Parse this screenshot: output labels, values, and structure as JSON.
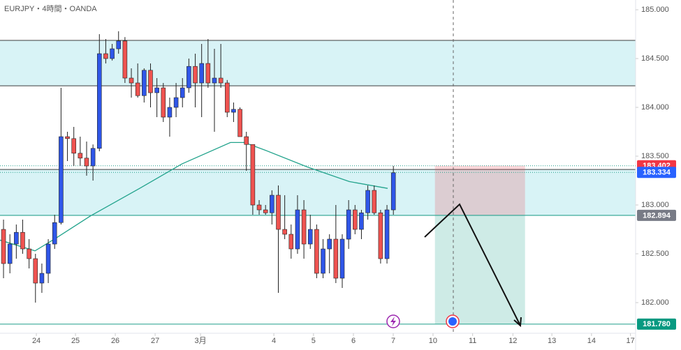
{
  "chart_data": {
    "type": "candlestick",
    "title": "EURJPY・4時間・OANDA",
    "up_color": "#2f56e8",
    "down_color": "#ef5350",
    "open": [
      182.75,
      182.4,
      182.6,
      182.72,
      182.55,
      182.45,
      182.2,
      182.3,
      182.6,
      182.82,
      183.7,
      183.68,
      183.53,
      183.48,
      183.4,
      183.58,
      184.55,
      184.5,
      184.6,
      184.68,
      184.3,
      184.25,
      184.12,
      184.38,
      184.15,
      184.2,
      183.9,
      184.0,
      184.1,
      184.2,
      184.42,
      184.25,
      184.45,
      184.25,
      184.3,
      184.25,
      183.95,
      183.98,
      183.7,
      183.62,
      183.0,
      182.95,
      182.92,
      183.1,
      182.75,
      182.7,
      182.55,
      182.95,
      182.6,
      182.75,
      182.3,
      182.55,
      182.65,
      182.25,
      182.65,
      182.95,
      182.75,
      182.92,
      183.15,
      182.92,
      182.45,
      182.95
    ],
    "high": [
      182.85,
      182.7,
      182.8,
      182.85,
      182.65,
      182.5,
      182.4,
      182.65,
      182.9,
      184.2,
      183.75,
      183.8,
      183.7,
      183.65,
      183.62,
      184.75,
      184.7,
      184.65,
      184.78,
      184.72,
      184.4,
      184.45,
      184.4,
      184.45,
      184.3,
      184.25,
      184.1,
      184.25,
      184.3,
      184.5,
      184.55,
      184.65,
      184.7,
      184.6,
      184.65,
      184.28,
      184.05,
      184.0,
      183.75,
      183.62,
      183.05,
      183.0,
      183.15,
      183.2,
      183.1,
      182.8,
      183.1,
      183.05,
      182.9,
      182.8,
      182.65,
      182.7,
      183.0,
      182.7,
      183.05,
      183.0,
      182.95,
      183.2,
      183.2,
      182.95,
      183.0,
      183.4
    ],
    "low": [
      182.25,
      182.3,
      182.45,
      182.5,
      182.35,
      182.0,
      182.1,
      182.2,
      182.55,
      182.8,
      183.45,
      183.4,
      183.4,
      183.3,
      183.25,
      183.55,
      184.45,
      184.48,
      184.55,
      184.25,
      184.1,
      184.1,
      184.05,
      184.0,
      183.9,
      183.85,
      183.7,
      183.9,
      184.0,
      184.15,
      184.0,
      183.9,
      184.2,
      183.75,
      184.2,
      183.9,
      183.85,
      183.7,
      183.35,
      182.9,
      182.9,
      182.9,
      182.8,
      182.1,
      182.65,
      182.45,
      182.5,
      182.45,
      182.55,
      182.25,
      182.25,
      182.3,
      182.2,
      182.15,
      182.55,
      182.7,
      182.65,
      182.85,
      182.9,
      182.4,
      182.4,
      182.9
    ],
    "close": [
      182.4,
      182.6,
      182.72,
      182.55,
      182.45,
      182.2,
      182.3,
      182.6,
      182.82,
      183.7,
      183.68,
      183.53,
      183.48,
      183.4,
      183.58,
      184.55,
      184.5,
      184.6,
      184.68,
      184.3,
      184.25,
      184.12,
      184.38,
      184.15,
      184.2,
      183.9,
      184.0,
      184.1,
      184.2,
      184.42,
      184.25,
      184.45,
      184.25,
      184.3,
      184.25,
      183.95,
      183.98,
      183.7,
      183.62,
      183.0,
      182.95,
      182.92,
      183.1,
      182.75,
      182.7,
      182.55,
      182.95,
      182.6,
      182.75,
      182.3,
      182.55,
      182.65,
      182.25,
      182.65,
      182.95,
      182.75,
      182.92,
      183.15,
      182.92,
      182.45,
      182.95,
      183.33
    ],
    "moving_average": {
      "color": "#22a38c",
      "x": [
        -0.55,
        4.92,
        8.2,
        13.66,
        21.3,
        27.9,
        35.5,
        37.7,
        41,
        47.5,
        54.1,
        60.1
      ],
      "values": [
        182.64,
        182.53,
        182.66,
        182.89,
        183.17,
        183.42,
        183.64,
        183.64,
        183.56,
        183.39,
        183.24,
        183.17
      ]
    },
    "zones": [
      {
        "from": 184.221,
        "to": 184.686
      },
      {
        "from": 182.894,
        "to": 183.364
      }
    ],
    "zone_color": "#d8f3f6",
    "position": {
      "x": [
        67.5,
        81.6
      ],
      "stop": 183.402,
      "entry": 182.894,
      "target": 181.78
    },
    "price_lines": [
      {
        "value": 183.402,
        "color": "#f23645"
      },
      {
        "value": 183.334,
        "color": "#2962ff"
      },
      {
        "value": 182.894,
        "color": "#787b86"
      },
      {
        "value": 181.78,
        "label": "181.780",
        "color": "#089981"
      }
    ],
    "xlim": [
      -0.55,
      98.9
    ],
    "ylim": [
      181.743,
      185.1
    ],
    "xticks": [
      {
        "value": 5.14,
        "label": "24"
      },
      {
        "value": 11.26,
        "label": "25"
      },
      {
        "value": 17.49,
        "label": "26"
      },
      {
        "value": 23.72,
        "label": "27"
      },
      {
        "value": 30.82,
        "label": "3月"
      },
      {
        "value": 42.3,
        "label": "4"
      },
      {
        "value": 48.5,
        "label": "5"
      },
      {
        "value": 54.75,
        "label": "6"
      },
      {
        "value": 60.98,
        "label": "7"
      },
      {
        "value": 67.2,
        "label": "10"
      },
      {
        "value": 73.4,
        "label": "11"
      },
      {
        "value": 79.7,
        "label": "12"
      },
      {
        "value": 85.8,
        "label": "13"
      },
      {
        "value": 92.0,
        "label": "14"
      },
      {
        "value": 98.1,
        "label": "17"
      }
    ],
    "yticks": [
      {
        "value": 182,
        "label": "182.000"
      },
      {
        "value": 182.5,
        "label": "182.500"
      },
      {
        "value": 183,
        "label": "183.000"
      },
      {
        "value": 183.5,
        "label": "183.500"
      },
      {
        "value": 184,
        "label": "184.000"
      },
      {
        "value": 184.5,
        "label": "184.500"
      },
      {
        "value": 185,
        "label": "185.000"
      }
    ]
  }
}
